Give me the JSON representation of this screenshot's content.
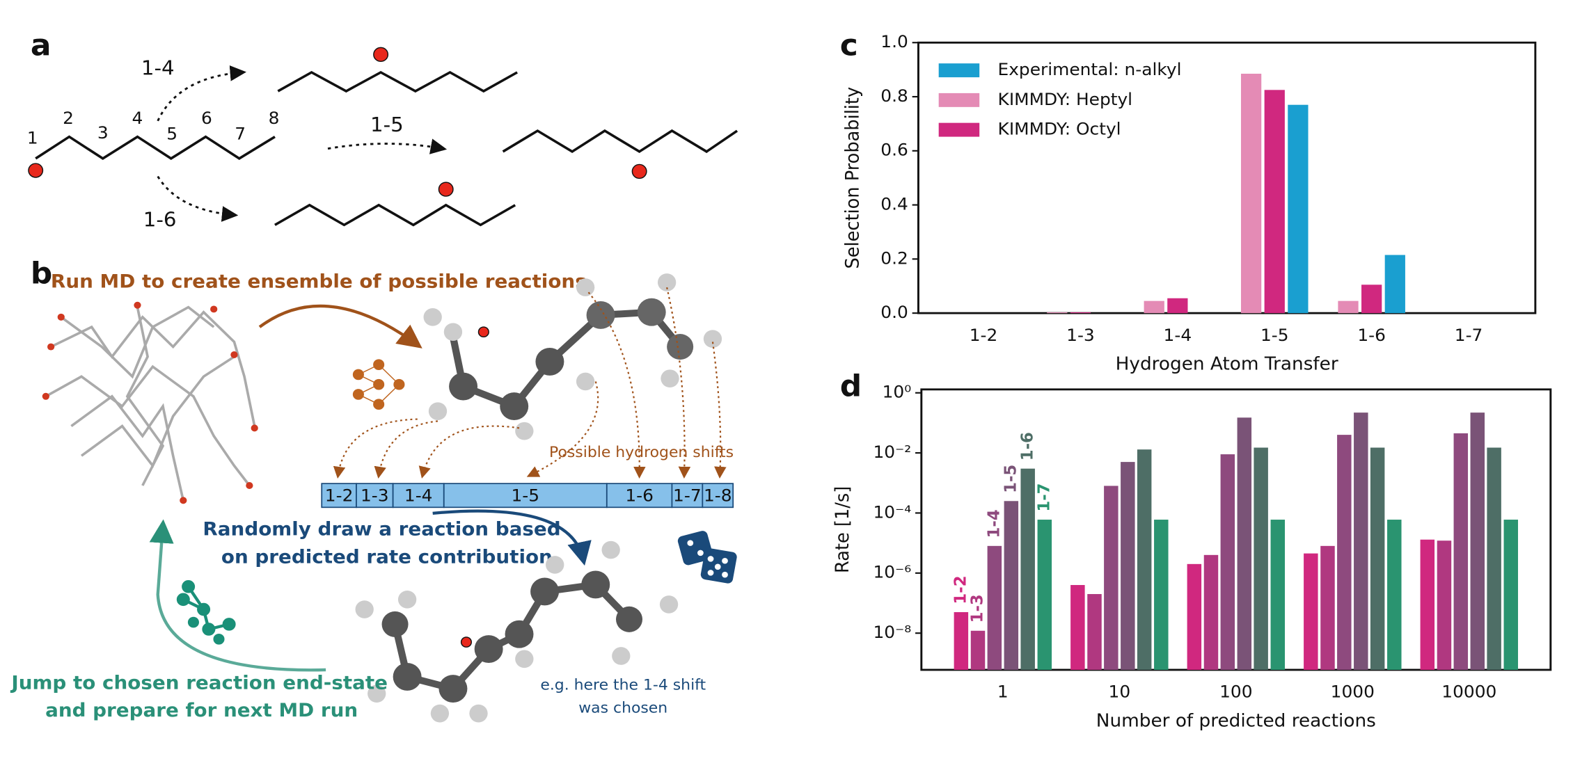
{
  "diagram": {
    "a": {
      "label": "a",
      "numbers": [
        "1",
        "2",
        "3",
        "4",
        "5",
        "6",
        "7",
        "8"
      ],
      "shift_14": "1-4",
      "shift_15": "1-5",
      "shift_16": "1-6"
    },
    "b": {
      "label": "b",
      "step1": "Run MD to create ensemble of possible reactions",
      "shifts_label": "Possible hydrogen shifts",
      "bar": [
        "1-2",
        "1-3",
        "1-4",
        "1-5",
        "1-6",
        "1-7",
        "1-8"
      ],
      "step2": [
        "Randomly draw a reaction based",
        "on predicted rate contribution"
      ],
      "example": [
        "e.g. here the 1-4 shift",
        "was chosen"
      ],
      "step3": [
        "Jump to chosen reaction end-state",
        "and prepare for next MD run"
      ]
    },
    "c": {
      "label": "c"
    },
    "d": {
      "label": "d"
    }
  },
  "chart_data": [
    {
      "type": "bar",
      "xlabel": "Hydrogen Atom Transfer",
      "ylabel": "Selection Probability",
      "categories": [
        "1-2",
        "1-3",
        "1-4",
        "1-5",
        "1-6",
        "1-7"
      ],
      "series": [
        {
          "name": "Experimental: n-alkyl",
          "color": "#1a9fd0",
          "values": [
            null,
            null,
            null,
            0.77,
            0.215,
            null
          ]
        },
        {
          "name": "KIMMDY: Heptyl",
          "color": "#e48bb5",
          "values": [
            0,
            0.003,
            0.045,
            0.885,
            0.045,
            0
          ]
        },
        {
          "name": "KIMMDY: Octyl",
          "color": "#d0287f",
          "values": [
            0,
            0.003,
            0.055,
            0.825,
            0.105,
            0
          ]
        }
      ],
      "ylim": [
        0,
        1
      ],
      "yticks": [
        {
          "value": 0,
          "label": "0.0"
        },
        {
          "value": 0.2,
          "label": "0.2"
        },
        {
          "value": 0.4,
          "label": "0.4"
        },
        {
          "value": 0.6,
          "label": "0.6"
        },
        {
          "value": 0.8,
          "label": "0.8"
        },
        {
          "value": 1,
          "label": "1.0"
        }
      ],
      "legend": "upper left"
    },
    {
      "type": "bar",
      "xlabel": "Number of predicted reactions",
      "ylabel": "Rate [1/s]",
      "log_scale": true,
      "categories": [
        "1",
        "10",
        "100",
        "1000",
        "10000"
      ],
      "series": [
        {
          "name": "1-2",
          "color": "#d0287f",
          "values": [
            5e-08,
            4e-07,
            2e-06,
            4.5e-06,
            1.3e-05
          ]
        },
        {
          "name": "1-3",
          "color": "#b03880",
          "values": [
            1.2e-08,
            2e-07,
            4e-06,
            8e-06,
            1.2e-05
          ]
        },
        {
          "name": "1-4",
          "color": "#8e4a7e",
          "values": [
            8e-06,
            0.0008,
            0.009,
            0.04,
            0.045
          ]
        },
        {
          "name": "1-5",
          "color": "#7a5377",
          "values": [
            0.00025,
            0.005,
            0.15,
            0.22,
            0.22
          ]
        },
        {
          "name": "1-6",
          "color": "#4e6e66",
          "values": [
            0.003,
            0.013,
            0.015,
            0.015,
            0.015
          ]
        },
        {
          "name": "1-7",
          "color": "#2a9470",
          "values": [
            6e-05,
            6e-05,
            6e-05,
            6e-05,
            6e-05
          ]
        }
      ],
      "ylim": [
        6e-10,
        1.3
      ],
      "yticks": [
        {
          "value": 1,
          "label": "10⁰"
        },
        {
          "value": 0.01,
          "label": "10⁻²"
        },
        {
          "value": 0.0001,
          "label": "10⁻⁴"
        },
        {
          "value": 1e-06,
          "label": "10⁻⁶"
        },
        {
          "value": 1e-08,
          "label": "10⁻⁸"
        }
      ],
      "legend": "labels above bars"
    }
  ]
}
